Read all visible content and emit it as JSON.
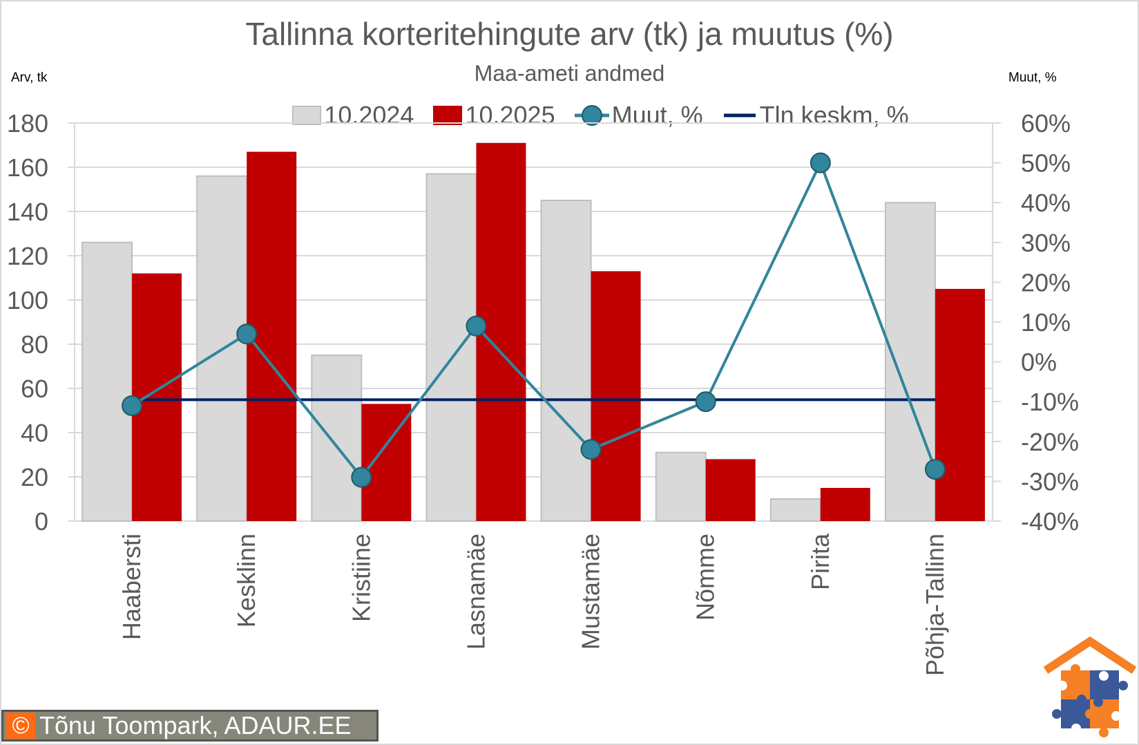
{
  "header": {
    "title": "Tallinna korteritehingute arv (tk) ja muutus (%)",
    "subtitle": "Maa-ameti andmed",
    "left_axis_unit": "Arv, tk",
    "right_axis_unit": "Muut, %"
  },
  "legend": {
    "items": [
      {
        "label": "10.2024",
        "type": "bar",
        "color": "#d9d9d9"
      },
      {
        "label": "10.2025",
        "type": "bar",
        "color": "#c00000"
      },
      {
        "label": "Muut, %",
        "type": "line-marker",
        "color": "#31859c"
      },
      {
        "label": "Tln keskm, %",
        "type": "line",
        "color": "#002060"
      }
    ]
  },
  "watermark": {
    "symbol": "©",
    "text": "Tõnu Toompark, ADAUR.EE"
  },
  "logo": {
    "icon": "house-puzzle-icon",
    "colors": [
      "#f58025",
      "#3b5998"
    ]
  },
  "chart_data": {
    "type": "bar",
    "title": "Tallinna korteritehingute arv (tk) ja muutus (%)",
    "subtitle": "Maa-ameti andmed",
    "xlabel": "",
    "ylabel": "Arv, tk",
    "y2label": "Muut, %",
    "ylim": [
      0,
      180
    ],
    "y2lim": [
      -40,
      60
    ],
    "yticks": [
      0,
      20,
      40,
      60,
      80,
      100,
      120,
      140,
      160,
      180
    ],
    "y2ticks": [
      "-40%",
      "-30%",
      "-20%",
      "-10%",
      "0%",
      "10%",
      "20%",
      "30%",
      "40%",
      "50%",
      "60%"
    ],
    "grid": true,
    "legend_position": "top",
    "categories": [
      "Haabersti",
      "Kesklinn",
      "Kristiine",
      "Lasnamäe",
      "Mustamäe",
      "Nõmme",
      "Pirita",
      "Põhja-Tallinn"
    ],
    "series": [
      {
        "name": "10.2024",
        "type": "bar",
        "axis": "left",
        "color": "#d9d9d9",
        "values": [
          126,
          156,
          75,
          157,
          145,
          31,
          10,
          144
        ]
      },
      {
        "name": "10.2025",
        "type": "bar",
        "axis": "left",
        "color": "#c00000",
        "values": [
          112,
          167,
          53,
          171,
          113,
          28,
          15,
          105
        ]
      },
      {
        "name": "Muut, %",
        "type": "line",
        "axis": "right",
        "color": "#31859c",
        "values": [
          -11,
          7,
          -29,
          9,
          -22,
          -10,
          50,
          -27
        ]
      },
      {
        "name": "Tln keskm, %",
        "type": "line",
        "axis": "right",
        "color": "#002060",
        "values": [
          -9.5,
          -9.5,
          -9.5,
          -9.5,
          -9.5,
          -9.5,
          -9.5,
          -9.5
        ]
      }
    ]
  }
}
